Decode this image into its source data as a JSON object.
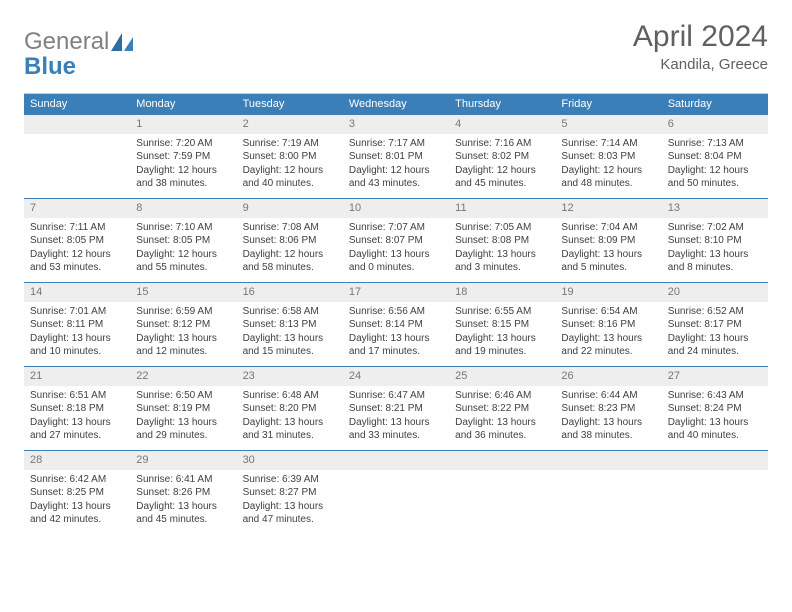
{
  "brand": {
    "word1": "General",
    "word2": "Blue"
  },
  "title": "April 2024",
  "location": "Kandila, Greece",
  "colors": {
    "header_bg": "#3b7fb8",
    "header_text": "#ffffff",
    "daynum_bg": "#eeeeee",
    "daynum_text": "#777777",
    "rule": "#3b7fb8",
    "body_text": "#404040",
    "title_text": "#606060"
  },
  "day_headers": [
    "Sunday",
    "Monday",
    "Tuesday",
    "Wednesday",
    "Thursday",
    "Friday",
    "Saturday"
  ],
  "weeks": [
    [
      {
        "n": "",
        "lines": []
      },
      {
        "n": "1",
        "lines": [
          "Sunrise: 7:20 AM",
          "Sunset: 7:59 PM",
          "Daylight: 12 hours and 38 minutes."
        ]
      },
      {
        "n": "2",
        "lines": [
          "Sunrise: 7:19 AM",
          "Sunset: 8:00 PM",
          "Daylight: 12 hours and 40 minutes."
        ]
      },
      {
        "n": "3",
        "lines": [
          "Sunrise: 7:17 AM",
          "Sunset: 8:01 PM",
          "Daylight: 12 hours and 43 minutes."
        ]
      },
      {
        "n": "4",
        "lines": [
          "Sunrise: 7:16 AM",
          "Sunset: 8:02 PM",
          "Daylight: 12 hours and 45 minutes."
        ]
      },
      {
        "n": "5",
        "lines": [
          "Sunrise: 7:14 AM",
          "Sunset: 8:03 PM",
          "Daylight: 12 hours and 48 minutes."
        ]
      },
      {
        "n": "6",
        "lines": [
          "Sunrise: 7:13 AM",
          "Sunset: 8:04 PM",
          "Daylight: 12 hours and 50 minutes."
        ]
      }
    ],
    [
      {
        "n": "7",
        "lines": [
          "Sunrise: 7:11 AM",
          "Sunset: 8:05 PM",
          "Daylight: 12 hours and 53 minutes."
        ]
      },
      {
        "n": "8",
        "lines": [
          "Sunrise: 7:10 AM",
          "Sunset: 8:05 PM",
          "Daylight: 12 hours and 55 minutes."
        ]
      },
      {
        "n": "9",
        "lines": [
          "Sunrise: 7:08 AM",
          "Sunset: 8:06 PM",
          "Daylight: 12 hours and 58 minutes."
        ]
      },
      {
        "n": "10",
        "lines": [
          "Sunrise: 7:07 AM",
          "Sunset: 8:07 PM",
          "Daylight: 13 hours and 0 minutes."
        ]
      },
      {
        "n": "11",
        "lines": [
          "Sunrise: 7:05 AM",
          "Sunset: 8:08 PM",
          "Daylight: 13 hours and 3 minutes."
        ]
      },
      {
        "n": "12",
        "lines": [
          "Sunrise: 7:04 AM",
          "Sunset: 8:09 PM",
          "Daylight: 13 hours and 5 minutes."
        ]
      },
      {
        "n": "13",
        "lines": [
          "Sunrise: 7:02 AM",
          "Sunset: 8:10 PM",
          "Daylight: 13 hours and 8 minutes."
        ]
      }
    ],
    [
      {
        "n": "14",
        "lines": [
          "Sunrise: 7:01 AM",
          "Sunset: 8:11 PM",
          "Daylight: 13 hours and 10 minutes."
        ]
      },
      {
        "n": "15",
        "lines": [
          "Sunrise: 6:59 AM",
          "Sunset: 8:12 PM",
          "Daylight: 13 hours and 12 minutes."
        ]
      },
      {
        "n": "16",
        "lines": [
          "Sunrise: 6:58 AM",
          "Sunset: 8:13 PM",
          "Daylight: 13 hours and 15 minutes."
        ]
      },
      {
        "n": "17",
        "lines": [
          "Sunrise: 6:56 AM",
          "Sunset: 8:14 PM",
          "Daylight: 13 hours and 17 minutes."
        ]
      },
      {
        "n": "18",
        "lines": [
          "Sunrise: 6:55 AM",
          "Sunset: 8:15 PM",
          "Daylight: 13 hours and 19 minutes."
        ]
      },
      {
        "n": "19",
        "lines": [
          "Sunrise: 6:54 AM",
          "Sunset: 8:16 PM",
          "Daylight: 13 hours and 22 minutes."
        ]
      },
      {
        "n": "20",
        "lines": [
          "Sunrise: 6:52 AM",
          "Sunset: 8:17 PM",
          "Daylight: 13 hours and 24 minutes."
        ]
      }
    ],
    [
      {
        "n": "21",
        "lines": [
          "Sunrise: 6:51 AM",
          "Sunset: 8:18 PM",
          "Daylight: 13 hours and 27 minutes."
        ]
      },
      {
        "n": "22",
        "lines": [
          "Sunrise: 6:50 AM",
          "Sunset: 8:19 PM",
          "Daylight: 13 hours and 29 minutes."
        ]
      },
      {
        "n": "23",
        "lines": [
          "Sunrise: 6:48 AM",
          "Sunset: 8:20 PM",
          "Daylight: 13 hours and 31 minutes."
        ]
      },
      {
        "n": "24",
        "lines": [
          "Sunrise: 6:47 AM",
          "Sunset: 8:21 PM",
          "Daylight: 13 hours and 33 minutes."
        ]
      },
      {
        "n": "25",
        "lines": [
          "Sunrise: 6:46 AM",
          "Sunset: 8:22 PM",
          "Daylight: 13 hours and 36 minutes."
        ]
      },
      {
        "n": "26",
        "lines": [
          "Sunrise: 6:44 AM",
          "Sunset: 8:23 PM",
          "Daylight: 13 hours and 38 minutes."
        ]
      },
      {
        "n": "27",
        "lines": [
          "Sunrise: 6:43 AM",
          "Sunset: 8:24 PM",
          "Daylight: 13 hours and 40 minutes."
        ]
      }
    ],
    [
      {
        "n": "28",
        "lines": [
          "Sunrise: 6:42 AM",
          "Sunset: 8:25 PM",
          "Daylight: 13 hours and 42 minutes."
        ]
      },
      {
        "n": "29",
        "lines": [
          "Sunrise: 6:41 AM",
          "Sunset: 8:26 PM",
          "Daylight: 13 hours and 45 minutes."
        ]
      },
      {
        "n": "30",
        "lines": [
          "Sunrise: 6:39 AM",
          "Sunset: 8:27 PM",
          "Daylight: 13 hours and 47 minutes."
        ]
      },
      {
        "n": "",
        "lines": []
      },
      {
        "n": "",
        "lines": []
      },
      {
        "n": "",
        "lines": []
      },
      {
        "n": "",
        "lines": []
      }
    ]
  ]
}
